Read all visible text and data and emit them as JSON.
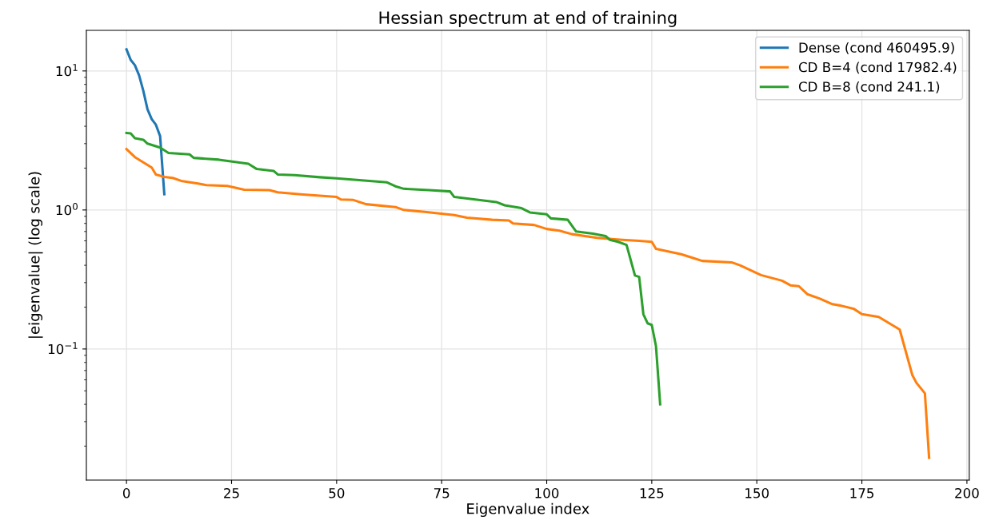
{
  "chart_data": {
    "type": "line",
    "title": "Hessian spectrum at end of training",
    "xlabel": "Eigenvalue index",
    "ylabel": "|eigenvalue| (log scale)",
    "log": "y",
    "grid": true,
    "legend": "top right",
    "marker": "none",
    "line_style": "solid",
    "xlim": [
      -9.55,
      200.55
    ],
    "xticks": [
      0,
      25,
      50,
      75,
      100,
      125,
      150,
      175,
      200
    ],
    "ylim": [
      0.0114,
      19.6
    ],
    "yticks": [
      {
        "value": 0.1,
        "label": "10$^{−1}$"
      },
      {
        "value": 1,
        "label": "10$^{0}$"
      },
      {
        "value": 10,
        "label": "10$^{1}$"
      }
    ],
    "series": [
      {
        "name": "Dense (cond 460495.9)",
        "color": "#1f77b4",
        "x": [
          0,
          1,
          2,
          3,
          4,
          5,
          6,
          7,
          8,
          9
        ],
        "values": [
          14.3,
          12.0,
          11.0,
          9.3,
          7.2,
          5.3,
          4.5,
          4.1,
          3.4,
          1.3
        ]
      },
      {
        "name": "CD B=4 (cond 17982.4)",
        "color": "#ff7f0e",
        "x": [
          0,
          2,
          4,
          6,
          7,
          9,
          11,
          13,
          17,
          19,
          24,
          28,
          34,
          36,
          42,
          50,
          51,
          54,
          57,
          64,
          66,
          71,
          78,
          81,
          87,
          91,
          92,
          97,
          100,
          103,
          106,
          112,
          118,
          122,
          125,
          126,
          128,
          132,
          135,
          137,
          144,
          146,
          151,
          156,
          158,
          160,
          162,
          165,
          168,
          170,
          173,
          175,
          179,
          184,
          187,
          188,
          190,
          191
        ],
        "values": [
          2.74,
          2.4,
          2.2,
          2.02,
          1.8,
          1.73,
          1.7,
          1.62,
          1.55,
          1.51,
          1.49,
          1.4,
          1.39,
          1.34,
          1.29,
          1.24,
          1.19,
          1.18,
          1.1,
          1.05,
          1.0,
          0.97,
          0.92,
          0.88,
          0.85,
          0.84,
          0.8,
          0.78,
          0.73,
          0.71,
          0.67,
          0.63,
          0.61,
          0.6,
          0.59,
          0.525,
          0.51,
          0.48,
          0.45,
          0.43,
          0.42,
          0.4,
          0.34,
          0.31,
          0.287,
          0.283,
          0.248,
          0.23,
          0.21,
          0.205,
          0.195,
          0.178,
          0.17,
          0.138,
          0.065,
          0.057,
          0.048,
          0.0165
        ]
      },
      {
        "name": "CD B=8 (cond 241.1)",
        "color": "#2ca02c",
        "x": [
          0,
          1,
          2,
          4,
          5,
          8,
          10,
          15,
          16,
          22,
          29,
          31,
          35,
          36,
          40,
          46,
          50,
          62,
          64,
          66,
          72,
          77,
          78,
          83,
          88,
          90,
          94,
          96,
          100,
          101,
          105,
          107,
          111,
          114,
          115,
          117,
          119,
          121,
          122,
          123,
          124,
          125,
          126,
          127
        ],
        "values": [
          3.58,
          3.55,
          3.28,
          3.2,
          3.0,
          2.81,
          2.57,
          2.51,
          2.37,
          2.3,
          2.15,
          1.97,
          1.91,
          1.8,
          1.78,
          1.72,
          1.69,
          1.58,
          1.48,
          1.42,
          1.39,
          1.36,
          1.24,
          1.19,
          1.14,
          1.08,
          1.03,
          0.96,
          0.93,
          0.87,
          0.85,
          0.7,
          0.675,
          0.65,
          0.61,
          0.59,
          0.56,
          0.338,
          0.33,
          0.178,
          0.153,
          0.149,
          0.105,
          0.04
        ]
      }
    ]
  }
}
